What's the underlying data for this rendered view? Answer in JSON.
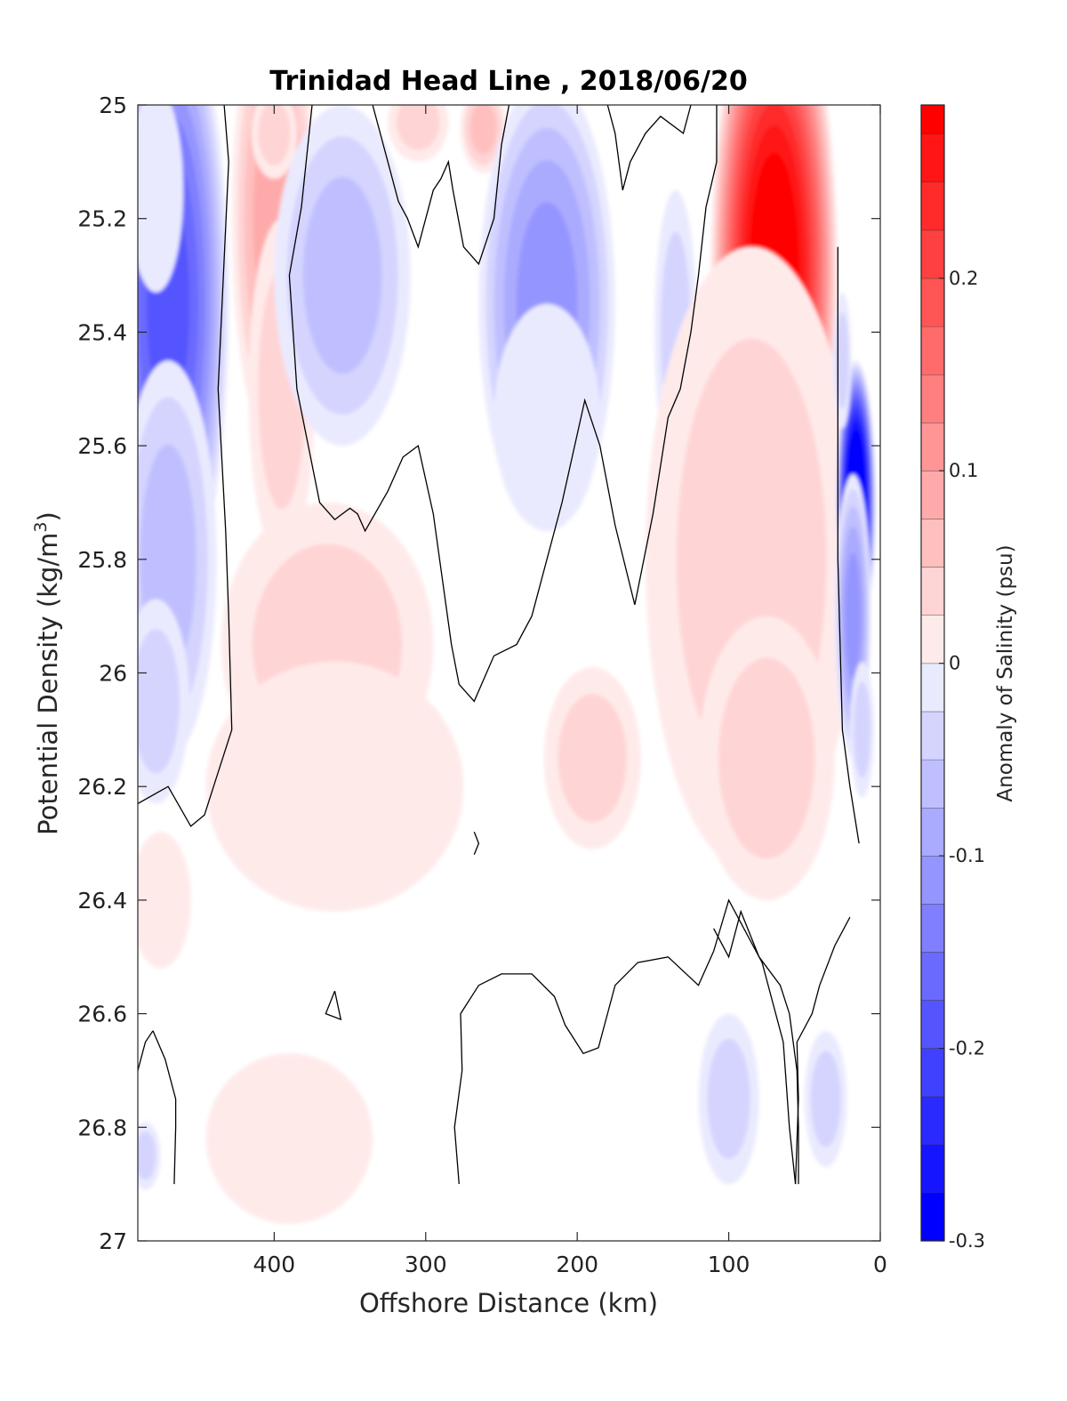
{
  "chart_data": {
    "type": "contour",
    "title": "Trinidad Head Line , 2018/06/20",
    "xlabel": "Offshore Distance (km)",
    "ylabel_main": "Potential Density (kg/m",
    "ylabel_sup": "3",
    "ylabel_close": ")",
    "xlim": [
      490,
      0
    ],
    "ylim": [
      25,
      27
    ],
    "y_reversed": true,
    "x_ticks": [
      400,
      300,
      200,
      100,
      0
    ],
    "y_ticks": [
      "25",
      "25.2",
      "25.4",
      "25.6",
      "25.8",
      "26",
      "26.2",
      "26.4",
      "26.6",
      "26.8",
      "27"
    ],
    "colorbar": {
      "label": "Anomaly of Salinity (psu)",
      "range": [
        -0.3,
        0.29
      ],
      "step": 0.025,
      "ticks": [
        "0.2",
        "0.1",
        "0",
        "-0.1",
        "-0.2",
        "-0.3"
      ],
      "min_color": "#0000ff",
      "zero_color": "#ffffff",
      "max_color": "#ff0000"
    },
    "blobs": [
      {
        "x": 470,
        "y": 25.35,
        "rx": 40,
        "ry": 0.55,
        "v": -0.21
      },
      {
        "x": 478,
        "y": 25.15,
        "rx": 18,
        "ry": 0.18,
        "v": -0.03
      },
      {
        "x": 470,
        "y": 25.8,
        "rx": 32,
        "ry": 0.35,
        "v": -0.08
      },
      {
        "x": 478,
        "y": 26.05,
        "rx": 22,
        "ry": 0.18,
        "v": -0.04
      },
      {
        "x": 400,
        "y": 25.2,
        "rx": 28,
        "ry": 0.4,
        "v": 0.1
      },
      {
        "x": 395,
        "y": 25.5,
        "rx": 22,
        "ry": 0.3,
        "v": 0.05
      },
      {
        "x": 400,
        "y": 25.05,
        "rx": 15,
        "ry": 0.08,
        "v": 0.06
      },
      {
        "x": 355,
        "y": 25.3,
        "rx": 45,
        "ry": 0.3,
        "v": -0.07
      },
      {
        "x": 305,
        "y": 25.03,
        "rx": 20,
        "ry": 0.07,
        "v": 0.05
      },
      {
        "x": 262,
        "y": 25.04,
        "rx": 15,
        "ry": 0.08,
        "v": 0.07
      },
      {
        "x": 220,
        "y": 25.35,
        "rx": 45,
        "ry": 0.4,
        "v": -0.12
      },
      {
        "x": 220,
        "y": 25.55,
        "rx": 35,
        "ry": 0.2,
        "v": -0.03
      },
      {
        "x": 135,
        "y": 25.4,
        "rx": 14,
        "ry": 0.25,
        "v": -0.05
      },
      {
        "x": 70,
        "y": 25.3,
        "rx": 42,
        "ry": 0.55,
        "v": 0.32
      },
      {
        "x": 72,
        "y": 25.85,
        "rx": 38,
        "ry": 0.35,
        "v": 0.1
      },
      {
        "x": 85,
        "y": 25.8,
        "rx": 70,
        "ry": 0.55,
        "v": 0.06
      },
      {
        "x": 75,
        "y": 26.15,
        "rx": 45,
        "ry": 0.25,
        "v": 0.04
      },
      {
        "x": 365,
        "y": 25.95,
        "rx": 70,
        "ry": 0.25,
        "v": 0.05
      },
      {
        "x": 360,
        "y": 26.2,
        "rx": 85,
        "ry": 0.22,
        "v": 0.03
      },
      {
        "x": 355,
        "y": 26.1,
        "rx": 25,
        "ry": 0.1,
        "v": 0.03
      },
      {
        "x": 190,
        "y": 26.15,
        "rx": 32,
        "ry": 0.16,
        "v": 0.06
      },
      {
        "x": 390,
        "y": 26.82,
        "rx": 55,
        "ry": 0.15,
        "v": 0.03
      },
      {
        "x": 475,
        "y": 26.4,
        "rx": 20,
        "ry": 0.12,
        "v": 0.03
      },
      {
        "x": 485,
        "y": 26.85,
        "rx": 10,
        "ry": 0.06,
        "v": -0.05
      },
      {
        "x": 100,
        "y": 26.75,
        "rx": 20,
        "ry": 0.15,
        "v": -0.05
      },
      {
        "x": 36,
        "y": 26.75,
        "rx": 14,
        "ry": 0.12,
        "v": -0.04
      },
      {
        "x": 16,
        "y": 25.7,
        "rx": 13,
        "ry": 0.25,
        "v": -0.38
      },
      {
        "x": 18,
        "y": 25.9,
        "rx": 12,
        "ry": 0.25,
        "v": -0.12
      },
      {
        "x": 25,
        "y": 25.45,
        "rx": 6,
        "ry": 0.12,
        "v": -0.06
      },
      {
        "x": 12,
        "y": 26.1,
        "rx": 8,
        "ry": 0.12,
        "v": -0.05
      }
    ],
    "zero_contours": [
      [
        [
          433,
          25.0
        ],
        [
          430,
          25.1
        ],
        [
          437,
          25.5
        ],
        [
          432,
          25.75
        ],
        [
          430,
          25.9
        ],
        [
          428,
          26.1
        ],
        [
          440,
          26.2
        ],
        [
          446,
          26.25
        ],
        [
          455,
          26.27
        ],
        [
          470,
          26.2
        ],
        [
          490,
          26.23
        ]
      ],
      [
        [
          375,
          25.0
        ],
        [
          382,
          25.18
        ],
        [
          390,
          25.3
        ],
        [
          385,
          25.5
        ],
        [
          370,
          25.7
        ],
        [
          360,
          25.73
        ],
        [
          350,
          25.71
        ],
        [
          345,
          25.72
        ],
        [
          340,
          25.75
        ],
        [
          325,
          25.68
        ],
        [
          315,
          25.62
        ],
        [
          305,
          25.6
        ],
        [
          295,
          25.72
        ],
        [
          283,
          25.95
        ],
        [
          278,
          26.02
        ],
        [
          268,
          26.05
        ],
        [
          255,
          25.97
        ],
        [
          240,
          25.95
        ],
        [
          230,
          25.9
        ],
        [
          220,
          25.8
        ],
        [
          210,
          25.7
        ],
        [
          195,
          25.52
        ],
        [
          185,
          25.6
        ],
        [
          175,
          25.74
        ],
        [
          162,
          25.88
        ],
        [
          150,
          25.72
        ],
        [
          140,
          25.55
        ],
        [
          132,
          25.5
        ],
        [
          125,
          25.4
        ],
        [
          120,
          25.3
        ],
        [
          115,
          25.18
        ],
        [
          108,
          25.1
        ],
        [
          108,
          25.0
        ]
      ],
      [
        [
          335,
          25.0
        ],
        [
          325,
          25.1
        ],
        [
          318,
          25.17
        ],
        [
          312,
          25.2
        ],
        [
          305,
          25.25
        ],
        [
          295,
          25.15
        ],
        [
          290,
          25.13
        ],
        [
          285,
          25.1
        ],
        [
          282,
          25.15
        ],
        [
          275,
          25.25
        ],
        [
          265,
          25.28
        ],
        [
          255,
          25.2
        ],
        [
          250,
          25.07
        ],
        [
          245,
          25.0
        ]
      ],
      [
        [
          180,
          25.0
        ],
        [
          175,
          25.05
        ],
        [
          170,
          25.15
        ],
        [
          165,
          25.1
        ],
        [
          155,
          25.05
        ],
        [
          145,
          25.02
        ],
        [
          130,
          25.05
        ],
        [
          125,
          25.0
        ]
      ],
      [
        [
          28,
          25.25
        ],
        [
          28,
          25.4
        ],
        [
          28,
          25.8
        ],
        [
          25,
          26.1
        ],
        [
          20,
          26.2
        ],
        [
          14,
          26.3
        ]
      ],
      [
        [
          480,
          26.63
        ],
        [
          485,
          26.65
        ],
        [
          490,
          26.7
        ]
      ],
      [
        [
          480,
          26.63
        ],
        [
          472,
          26.68
        ],
        [
          465,
          26.75
        ],
        [
          465,
          26.8
        ],
        [
          466,
          26.9
        ]
      ],
      [
        [
          278,
          26.9
        ],
        [
          281,
          26.8
        ],
        [
          276,
          26.7
        ],
        [
          277,
          26.6
        ],
        [
          265,
          26.55
        ],
        [
          250,
          26.53
        ],
        [
          230,
          26.53
        ],
        [
          215,
          26.57
        ],
        [
          208,
          26.62
        ],
        [
          196,
          26.67
        ],
        [
          186,
          26.66
        ],
        [
          175,
          26.55
        ],
        [
          160,
          26.51
        ],
        [
          140,
          26.5
        ],
        [
          120,
          26.55
        ],
        [
          110,
          26.49
        ],
        [
          100,
          26.4
        ],
        [
          90,
          26.45
        ],
        [
          78,
          26.51
        ],
        [
          64,
          26.65
        ],
        [
          60,
          26.8
        ],
        [
          56,
          26.9
        ]
      ],
      [
        [
          54,
          26.9
        ],
        [
          54,
          26.8
        ],
        [
          55,
          26.7
        ],
        [
          60,
          26.6
        ],
        [
          66,
          26.55
        ],
        [
          80,
          26.5
        ],
        [
          92,
          26.42
        ],
        [
          100,
          26.5
        ],
        [
          110,
          26.45
        ]
      ],
      [
        [
          20,
          26.43
        ],
        [
          30,
          26.48
        ],
        [
          40,
          26.55
        ],
        [
          45,
          26.6
        ],
        [
          55,
          26.65
        ],
        [
          54,
          26.75
        ],
        [
          56,
          26.9
        ]
      ],
      [
        [
          360,
          26.56
        ],
        [
          356,
          26.61
        ],
        [
          366,
          26.6
        ],
        [
          360,
          26.56
        ]
      ],
      [
        [
          268,
          26.28
        ],
        [
          265,
          26.3
        ],
        [
          268,
          26.32
        ]
      ]
    ]
  }
}
